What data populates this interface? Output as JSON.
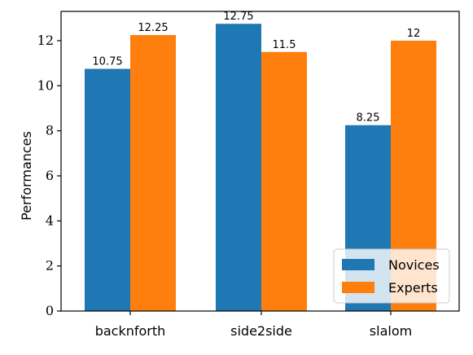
{
  "chart_data": {
    "type": "bar",
    "categories": [
      "backnforth",
      "side2side",
      "slalom"
    ],
    "series": [
      {
        "name": "Novices",
        "values": [
          10.75,
          12.75,
          8.25
        ],
        "color": "#1f77b4"
      },
      {
        "name": "Experts",
        "values": [
          12.25,
          11.5,
          12
        ],
        "color": "#ff7f0e"
      }
    ],
    "data_labels": [
      [
        "10.75",
        "12.75",
        "8.25"
      ],
      [
        "12.25",
        "11.5",
        "12"
      ]
    ],
    "title": "",
    "xlabel": "",
    "ylabel": "Performances",
    "ylim": [
      0,
      13.3
    ],
    "yticks": [
      0,
      2,
      4,
      6,
      8,
      10,
      12
    ],
    "grid": false,
    "legend_position": "lower-right"
  }
}
